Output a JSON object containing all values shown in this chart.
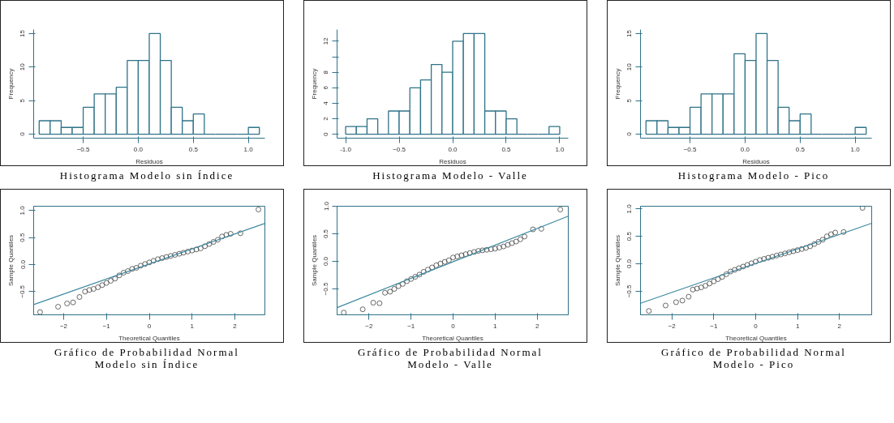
{
  "chart_data": [
    {
      "type": "histogram",
      "title": "Histograma Modelo sin Índice",
      "xlabel": "Residuos",
      "ylabel": "Frequency",
      "color": "#2f7388",
      "grid": false,
      "bins": [
        -0.9,
        -0.8,
        -0.7,
        -0.6,
        -0.5,
        -0.4,
        -0.3,
        -0.2,
        -0.1,
        0.0,
        0.1,
        0.2,
        0.3,
        0.4,
        0.5,
        0.6,
        0.7,
        0.8,
        0.9,
        1.0,
        1.1
      ],
      "values": [
        2,
        2,
        1,
        1,
        4,
        6,
        6,
        7,
        11,
        11,
        15,
        11,
        4,
        2,
        3,
        0,
        0,
        0,
        0,
        1
      ],
      "xlim": [
        -0.95,
        1.15
      ],
      "ylim": [
        -0.6,
        15.6
      ],
      "xticks": [
        -0.5,
        {
          "value": 0,
          "label": "0.0"
        },
        0.5,
        {
          "value": 1,
          "label": "1.0"
        }
      ],
      "yticks": [
        0,
        5,
        10,
        15
      ]
    },
    {
      "type": "histogram",
      "title": "Histograma Modelo - Valle",
      "xlabel": "Residuos",
      "ylabel": "Frequency",
      "color": "#2f7388",
      "grid": false,
      "bins": [
        -1.0,
        -0.9,
        -0.8,
        -0.7,
        -0.6,
        -0.5,
        -0.4,
        -0.3,
        -0.2,
        -0.1,
        0.0,
        0.1,
        0.2,
        0.3,
        0.4,
        0.5,
        0.6,
        0.7,
        0.8,
        0.9,
        1.0
      ],
      "values": [
        1,
        1,
        2,
        0,
        3,
        3,
        6,
        7,
        9,
        8,
        12,
        13,
        13,
        3,
        3,
        2,
        0,
        0,
        0,
        1
      ],
      "xlim": [
        -1.08,
        1.08
      ],
      "ylim": [
        -0.5,
        13.5
      ],
      "xticks": [
        {
          "value": -1,
          "label": "-1.0"
        },
        -0.5,
        {
          "value": 0,
          "label": "0.0"
        },
        0.5,
        {
          "value": 1,
          "label": "1.0"
        }
      ],
      "yticks": [
        0,
        2,
        4,
        6,
        8,
        {
          "value": 10,
          "label": null
        },
        12
      ]
    },
    {
      "type": "histogram",
      "title": "Histograma Modelo - Pico",
      "xlabel": "Residuos",
      "ylabel": "Frequency",
      "color": "#2f7388",
      "grid": false,
      "bins": [
        -0.9,
        -0.8,
        -0.7,
        -0.6,
        -0.5,
        -0.4,
        -0.3,
        -0.2,
        -0.1,
        0.0,
        0.1,
        0.2,
        0.3,
        0.4,
        0.5,
        0.6,
        0.7,
        0.8,
        0.9,
        1.0,
        1.1
      ],
      "values": [
        2,
        2,
        1,
        1,
        4,
        6,
        6,
        6,
        12,
        11,
        15,
        11,
        4,
        2,
        3,
        0,
        0,
        0,
        0,
        1
      ],
      "xlim": [
        -0.95,
        1.15
      ],
      "ylim": [
        -0.6,
        15.6
      ],
      "xticks": [
        -0.5,
        {
          "value": 0,
          "label": "0.0"
        },
        0.5,
        {
          "value": 1,
          "label": "1.0"
        }
      ],
      "yticks": [
        0,
        5,
        10,
        15
      ]
    },
    {
      "type": "scatter",
      "title": "Gráfico de Probabilidad Normal",
      "subtitle": "Modelo sin Índice",
      "xlabel": "Theoretical Quantiles",
      "ylabel": "Sample Quantiles",
      "grid": false,
      "series": [
        {
          "type": "scatter",
          "marker": "circle",
          "color": "#444444",
          "x": [
            -2.55,
            -2.13,
            -1.92,
            -1.78,
            -1.63,
            -1.5,
            -1.4,
            -1.3,
            -1.2,
            -1.1,
            -1.0,
            -0.9,
            -0.8,
            -0.7,
            -0.6,
            -0.5,
            -0.4,
            -0.3,
            -0.2,
            -0.1,
            0.0,
            0.1,
            0.2,
            0.3,
            0.4,
            0.5,
            0.6,
            0.7,
            0.8,
            0.9,
            1.0,
            1.1,
            1.2,
            1.3,
            1.4,
            1.5,
            1.6,
            1.7,
            1.8,
            1.9,
            2.13,
            2.55
          ],
          "values": [
            -0.88,
            -0.78,
            -0.72,
            -0.7,
            -0.6,
            -0.5,
            -0.47,
            -0.45,
            -0.42,
            -0.38,
            -0.34,
            -0.3,
            -0.26,
            -0.2,
            -0.15,
            -0.12,
            -0.08,
            -0.06,
            -0.02,
            0.01,
            0.04,
            0.07,
            0.1,
            0.12,
            0.14,
            0.16,
            0.18,
            0.2,
            0.22,
            0.24,
            0.26,
            0.28,
            0.3,
            0.34,
            0.38,
            0.42,
            0.46,
            0.52,
            0.55,
            0.57,
            0.58,
            1.02
          ]
        },
        {
          "type": "line",
          "marker": "none",
          "color": "#3f8aa0",
          "x": [
            -2.7,
            2.69
          ],
          "values": [
            -0.74,
            0.76
          ]
        }
      ],
      "xlim": [
        -2.7,
        2.7
      ],
      "ylim": [
        -0.93,
        1.08
      ],
      "xticks": [
        -2,
        -1,
        0,
        1,
        2
      ],
      "yticks": [
        -0.5,
        {
          "value": 0,
          "label": "0.0"
        },
        0.5,
        {
          "value": 1,
          "label": "1.0"
        }
      ]
    },
    {
      "type": "scatter",
      "title": "Gráfico de Probabilidad Normal",
      "subtitle": "Modelo - Valle",
      "xlabel": "Theoretical Quantiles",
      "ylabel": "Sample Quantiles",
      "grid": false,
      "series": [
        {
          "type": "scatter",
          "marker": "circle",
          "color": "#444444",
          "x": [
            -2.6,
            -2.15,
            -1.9,
            -1.75,
            -1.62,
            -1.5,
            -1.4,
            -1.3,
            -1.2,
            -1.1,
            -1.0,
            -0.9,
            -0.8,
            -0.7,
            -0.6,
            -0.5,
            -0.4,
            -0.3,
            -0.2,
            -0.1,
            0.0,
            0.1,
            0.2,
            0.3,
            0.4,
            0.5,
            0.6,
            0.7,
            0.8,
            0.9,
            1.0,
            1.1,
            1.2,
            1.3,
            1.4,
            1.5,
            1.6,
            1.7,
            1.9,
            2.1,
            2.55
          ],
          "values": [
            -0.93,
            -0.87,
            -0.75,
            -0.76,
            -0.57,
            -0.55,
            -0.5,
            -0.45,
            -0.41,
            -0.36,
            -0.32,
            -0.28,
            -0.24,
            -0.19,
            -0.15,
            -0.11,
            -0.07,
            -0.04,
            -0.01,
            0.02,
            0.07,
            0.09,
            0.11,
            0.13,
            0.15,
            0.17,
            0.19,
            0.2,
            0.21,
            0.22,
            0.23,
            0.25,
            0.27,
            0.3,
            0.33,
            0.36,
            0.4,
            0.45,
            0.58,
            0.59,
            0.94
          ]
        },
        {
          "type": "line",
          "marker": "none",
          "color": "#3f8aa0",
          "x": [
            -2.76,
            2.74
          ],
          "values": [
            -0.84,
            0.82
          ]
        }
      ],
      "xlim": [
        -2.76,
        2.74
      ],
      "ylim": [
        -0.97,
        1.0
      ],
      "xticks": [
        -2,
        -1,
        0,
        1,
        2
      ],
      "yticks": [
        -0.5,
        {
          "value": 0,
          "label": "0.0"
        },
        0.5,
        {
          "value": 1,
          "label": "1.0"
        }
      ]
    },
    {
      "type": "scatter",
      "title": "Gráfico de Probabilidad Normal",
      "subtitle": "Modelo - Pico",
      "xlabel": "Theoretical Quantiles",
      "ylabel": "Sample Quantiles",
      "grid": false,
      "series": [
        {
          "type": "scatter",
          "marker": "circle",
          "color": "#444444",
          "x": [
            -2.55,
            -2.15,
            -1.9,
            -1.75,
            -1.6,
            -1.5,
            -1.4,
            -1.3,
            -1.2,
            -1.1,
            -1.0,
            -0.9,
            -0.8,
            -0.7,
            -0.6,
            -0.5,
            -0.4,
            -0.3,
            -0.2,
            -0.1,
            0.0,
            0.1,
            0.2,
            0.3,
            0.4,
            0.5,
            0.6,
            0.7,
            0.8,
            0.9,
            1.0,
            1.1,
            1.2,
            1.3,
            1.4,
            1.5,
            1.6,
            1.7,
            1.8,
            1.9,
            2.1,
            2.55
          ],
          "values": [
            -0.86,
            -0.76,
            -0.7,
            -0.67,
            -0.6,
            -0.47,
            -0.45,
            -0.43,
            -0.4,
            -0.36,
            -0.32,
            -0.28,
            -0.24,
            -0.19,
            -0.14,
            -0.11,
            -0.08,
            -0.05,
            -0.02,
            0.01,
            0.04,
            0.07,
            0.09,
            0.11,
            0.13,
            0.15,
            0.17,
            0.19,
            0.21,
            0.23,
            0.25,
            0.27,
            0.29,
            0.32,
            0.36,
            0.4,
            0.44,
            0.5,
            0.54,
            0.57,
            0.58,
            1.02
          ]
        },
        {
          "type": "line",
          "marker": "none",
          "color": "#3f8aa0",
          "x": [
            -2.75,
            2.77
          ],
          "values": [
            -0.72,
            0.74
          ]
        }
      ],
      "xlim": [
        -2.75,
        2.77
      ],
      "ylim": [
        -0.93,
        1.05
      ],
      "xticks": [
        -2,
        -1,
        0,
        1,
        2
      ],
      "yticks": [
        -0.5,
        {
          "value": 0,
          "label": "0.0"
        },
        0.5,
        {
          "value": 1,
          "label": "1.0"
        }
      ]
    }
  ]
}
